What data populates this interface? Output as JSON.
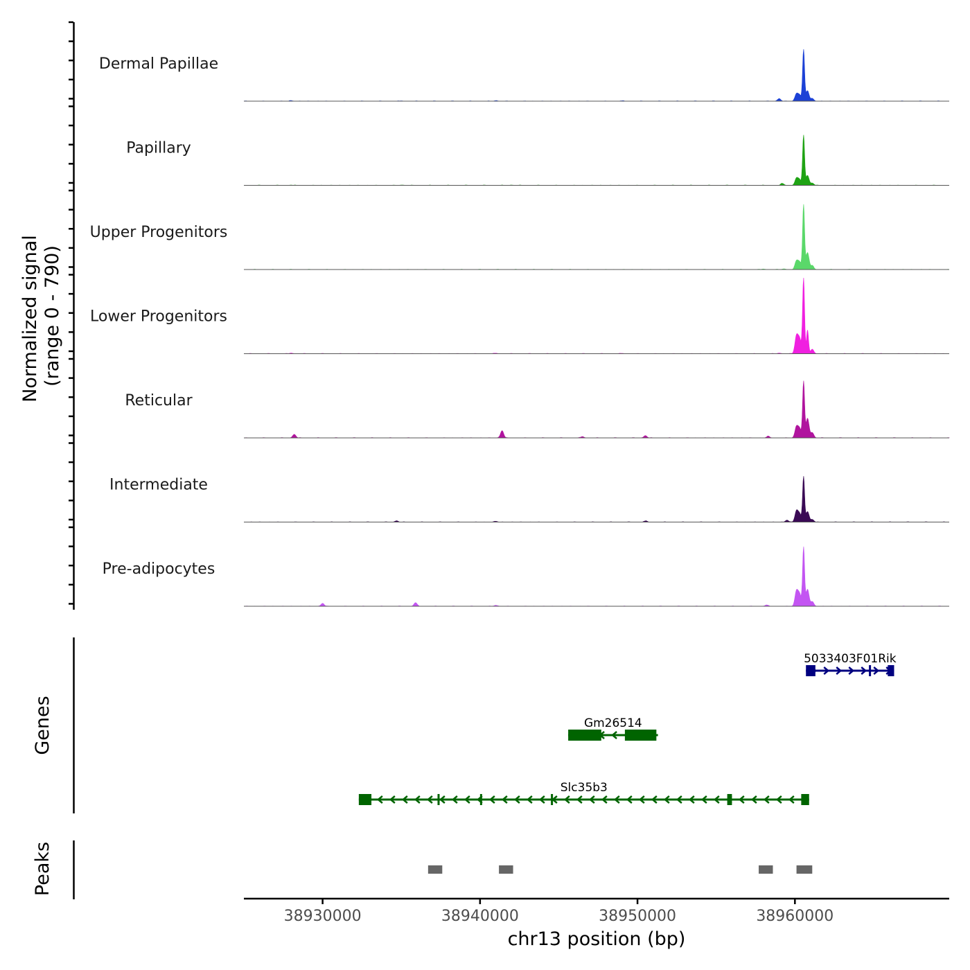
{
  "chart_data": {
    "type": "area",
    "title": "",
    "region": {
      "chrom": "chr13",
      "start": 38925000,
      "end": 38969800
    },
    "ylabel_line1": "Normalized signal",
    "ylabel_line2": "(range 0 - 790)",
    "y_range": [
      0,
      790
    ],
    "xlabel": "chr13 position (bp)",
    "x_ticks": [
      {
        "value": 38930000,
        "label": "38930000"
      },
      {
        "value": 38940000,
        "label": "38940000"
      },
      {
        "value": 38950000,
        "label": "38950000"
      },
      {
        "value": 38960000,
        "label": "38960000"
      }
    ],
    "series": [
      {
        "name": "Dermal Papillae",
        "color": "#1c41d6",
        "points": [
          [
            38928000,
            8
          ],
          [
            38935000,
            5
          ],
          [
            38941000,
            8
          ],
          [
            38949000,
            6
          ],
          [
            38959000,
            40
          ],
          [
            38960100,
            110
          ],
          [
            38960300,
            90
          ],
          [
            38960550,
            780
          ],
          [
            38960800,
            160
          ],
          [
            38961100,
            40
          ]
        ]
      },
      {
        "name": "Papillary",
        "color": "#1fa314",
        "points": [
          [
            38928000,
            4
          ],
          [
            38935000,
            4
          ],
          [
            38942000,
            4
          ],
          [
            38959200,
            30
          ],
          [
            38960100,
            110
          ],
          [
            38960300,
            80
          ],
          [
            38960550,
            760
          ],
          [
            38960800,
            150
          ],
          [
            38961100,
            35
          ]
        ]
      },
      {
        "name": "Upper Progenitors",
        "color": "#5ad86a",
        "points": [
          [
            38958000,
            8
          ],
          [
            38959300,
            10
          ],
          [
            38960100,
            130
          ],
          [
            38960300,
            110
          ],
          [
            38960550,
            980
          ],
          [
            38960800,
            260
          ],
          [
            38961100,
            60
          ]
        ]
      },
      {
        "name": "Lower Progenitors",
        "color": "#f020e0",
        "points": [
          [
            38928000,
            10
          ],
          [
            38941000,
            8
          ],
          [
            38949000,
            6
          ],
          [
            38959000,
            10
          ],
          [
            38960100,
            270
          ],
          [
            38960300,
            220
          ],
          [
            38960550,
            1150
          ],
          [
            38960800,
            360
          ],
          [
            38961100,
            70
          ]
        ]
      },
      {
        "name": "Reticular",
        "color": "#b0149e",
        "points": [
          [
            38928200,
            55
          ],
          [
            38941400,
            110
          ],
          [
            38946500,
            20
          ],
          [
            38950500,
            35
          ],
          [
            38958300,
            25
          ],
          [
            38960100,
            170
          ],
          [
            38960300,
            140
          ],
          [
            38960550,
            850
          ],
          [
            38960800,
            300
          ],
          [
            38961100,
            80
          ]
        ]
      },
      {
        "name": "Intermediate",
        "color": "#3a0a55",
        "points": [
          [
            38934700,
            20
          ],
          [
            38941000,
            12
          ],
          [
            38950500,
            18
          ],
          [
            38959500,
            30
          ],
          [
            38960100,
            170
          ],
          [
            38960300,
            120
          ],
          [
            38960550,
            690
          ],
          [
            38960800,
            160
          ],
          [
            38961100,
            40
          ]
        ]
      },
      {
        "name": "Pre-adipocytes",
        "color": "#c355f2",
        "points": [
          [
            38930000,
            45
          ],
          [
            38935900,
            55
          ],
          [
            38941000,
            15
          ],
          [
            38958200,
            20
          ],
          [
            38960100,
            230
          ],
          [
            38960300,
            180
          ],
          [
            38960550,
            890
          ],
          [
            38960800,
            260
          ],
          [
            38961100,
            70
          ]
        ]
      }
    ],
    "genes_label": "Genes",
    "genes": [
      {
        "name": "5033403F01Rik",
        "strand": "+",
        "start": 38960700,
        "end": 38966300,
        "color": "#000080",
        "exons": [
          [
            38960700,
            38961300
          ],
          [
            38964700,
            38964800
          ],
          [
            38965900,
            38966300
          ]
        ]
      },
      {
        "name": "Gm26514",
        "strand": "-",
        "start": 38945600,
        "end": 38951300,
        "color": "#006400",
        "exons": [
          [
            38945600,
            38947700
          ],
          [
            38949200,
            38951200
          ]
        ]
      },
      {
        "name": "Slc35b3",
        "strand": "-",
        "start": 38932300,
        "end": 38960900,
        "color": "#006400",
        "exons": [
          [
            38932300,
            38933100
          ],
          [
            38937300,
            38937400
          ],
          [
            38940000,
            38940100
          ],
          [
            38944500,
            38944600
          ],
          [
            38955700,
            38956000
          ],
          [
            38960400,
            38960900
          ]
        ]
      }
    ],
    "peaks_label": "Peaks",
    "peaks": [
      [
        38936700,
        38937600
      ],
      [
        38941200,
        38942100
      ],
      [
        38957700,
        38958600
      ],
      [
        38960100,
        38961100
      ]
    ],
    "peak_color": "#666666"
  }
}
